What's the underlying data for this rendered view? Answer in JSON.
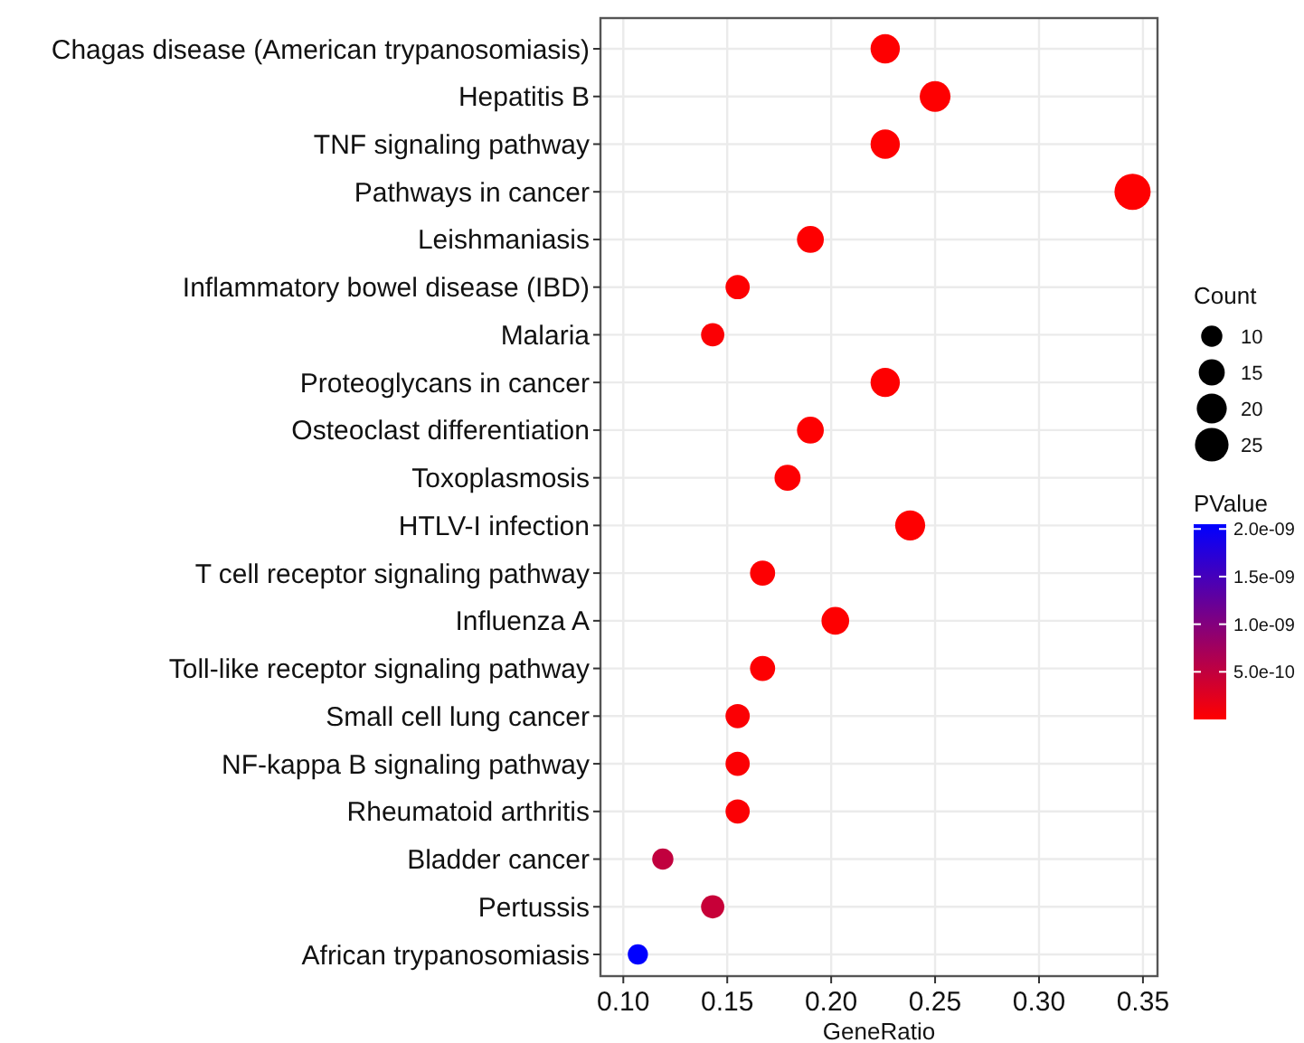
{
  "chart_data": {
    "type": "bubble",
    "xlabel": "GeneRatio",
    "legend_title": "Count",
    "clabel": "PValue",
    "categories": [
      "Chagas disease (American trypanosomiasis)",
      "Hepatitis B",
      "TNF signaling pathway",
      "Pathways in cancer",
      "Leishmaniasis",
      "Inflammatory bowel disease (IBD)",
      "Malaria",
      "Proteoglycans in cancer",
      "Osteoclast differentiation",
      "Toxoplasmosis",
      "HTLV-I infection",
      "T cell receptor signaling pathway",
      "Influenza A",
      "Toll-like receptor signaling pathway",
      "Small cell lung cancer",
      "NF-kappa B signaling pathway",
      "Rheumatoid arthritis",
      "Bladder cancer",
      "Pertussis",
      "African trypanosomiasis"
    ],
    "values": [
      0.226,
      0.25,
      0.226,
      0.345,
      0.19,
      0.155,
      0.143,
      0.226,
      0.19,
      0.179,
      0.238,
      0.167,
      0.202,
      0.167,
      0.155,
      0.155,
      0.155,
      0.119,
      0.143,
      0.107
    ],
    "sizes": [
      19,
      21,
      19,
      29,
      16,
      13,
      12,
      19,
      16,
      15,
      20,
      14,
      17,
      14,
      13,
      13,
      13,
      10,
      12,
      9
    ],
    "size_legend": [
      10,
      15,
      20,
      25
    ],
    "cvalues": [
      1e-11,
      1e-11,
      1e-11,
      1e-11,
      1e-11,
      2e-11,
      3e-11,
      1e-11,
      1e-11,
      2e-11,
      1e-11,
      2e-11,
      1e-11,
      2e-11,
      3e-11,
      3e-11,
      3e-11,
      5e-10,
      4.5e-10,
      2.05e-09
    ],
    "clim": [
      0,
      2.05e-09
    ],
    "cticks": [
      {
        "value": 5e-10,
        "label": "5.0e-10"
      },
      {
        "value": 1e-09,
        "label": "1.0e-09"
      },
      {
        "value": 1.5e-09,
        "label": "1.5e-09"
      },
      {
        "value": 2e-09,
        "label": "2.0e-09"
      }
    ],
    "xlim": [
      0.089,
      0.357
    ],
    "xticks": [
      {
        "value": 0.1,
        "label": "0.10"
      },
      {
        "value": 0.15,
        "label": "0.15"
      },
      {
        "value": 0.2,
        "label": "0.20"
      },
      {
        "value": 0.25,
        "label": "0.25"
      },
      {
        "value": 0.3,
        "label": "0.30"
      },
      {
        "value": 0.35,
        "label": "0.35"
      }
    ],
    "grid": true,
    "orientation": "horizontal"
  }
}
